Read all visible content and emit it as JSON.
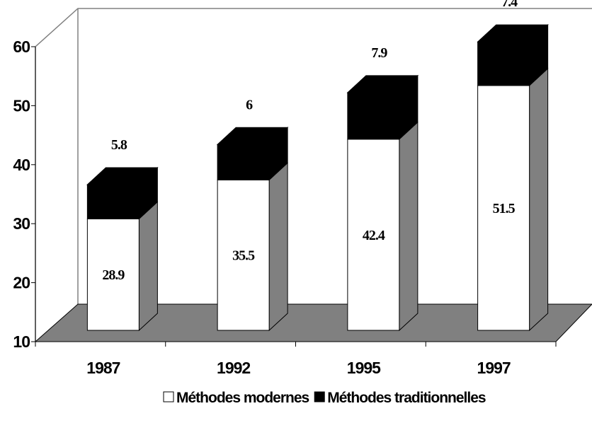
{
  "chart_data": {
    "type": "bar3d_stacked",
    "categories": [
      "1987",
      "1992",
      "1995",
      "1997"
    ],
    "series": [
      {
        "name": "Méthodes modernes",
        "color": "#ffffff",
        "values": [
          28.9,
          35.5,
          42.4,
          51.5
        ]
      },
      {
        "name": "Méthodes traditionnelles",
        "color": "#000000",
        "values": [
          5.8,
          6,
          7.9,
          7.4
        ]
      }
    ],
    "ylim": [
      10,
      60
    ],
    "yticks": [
      10,
      20,
      30,
      40,
      50,
      60
    ],
    "floor_color": "#808080",
    "side_color": "#808080",
    "legend": "bottom"
  }
}
